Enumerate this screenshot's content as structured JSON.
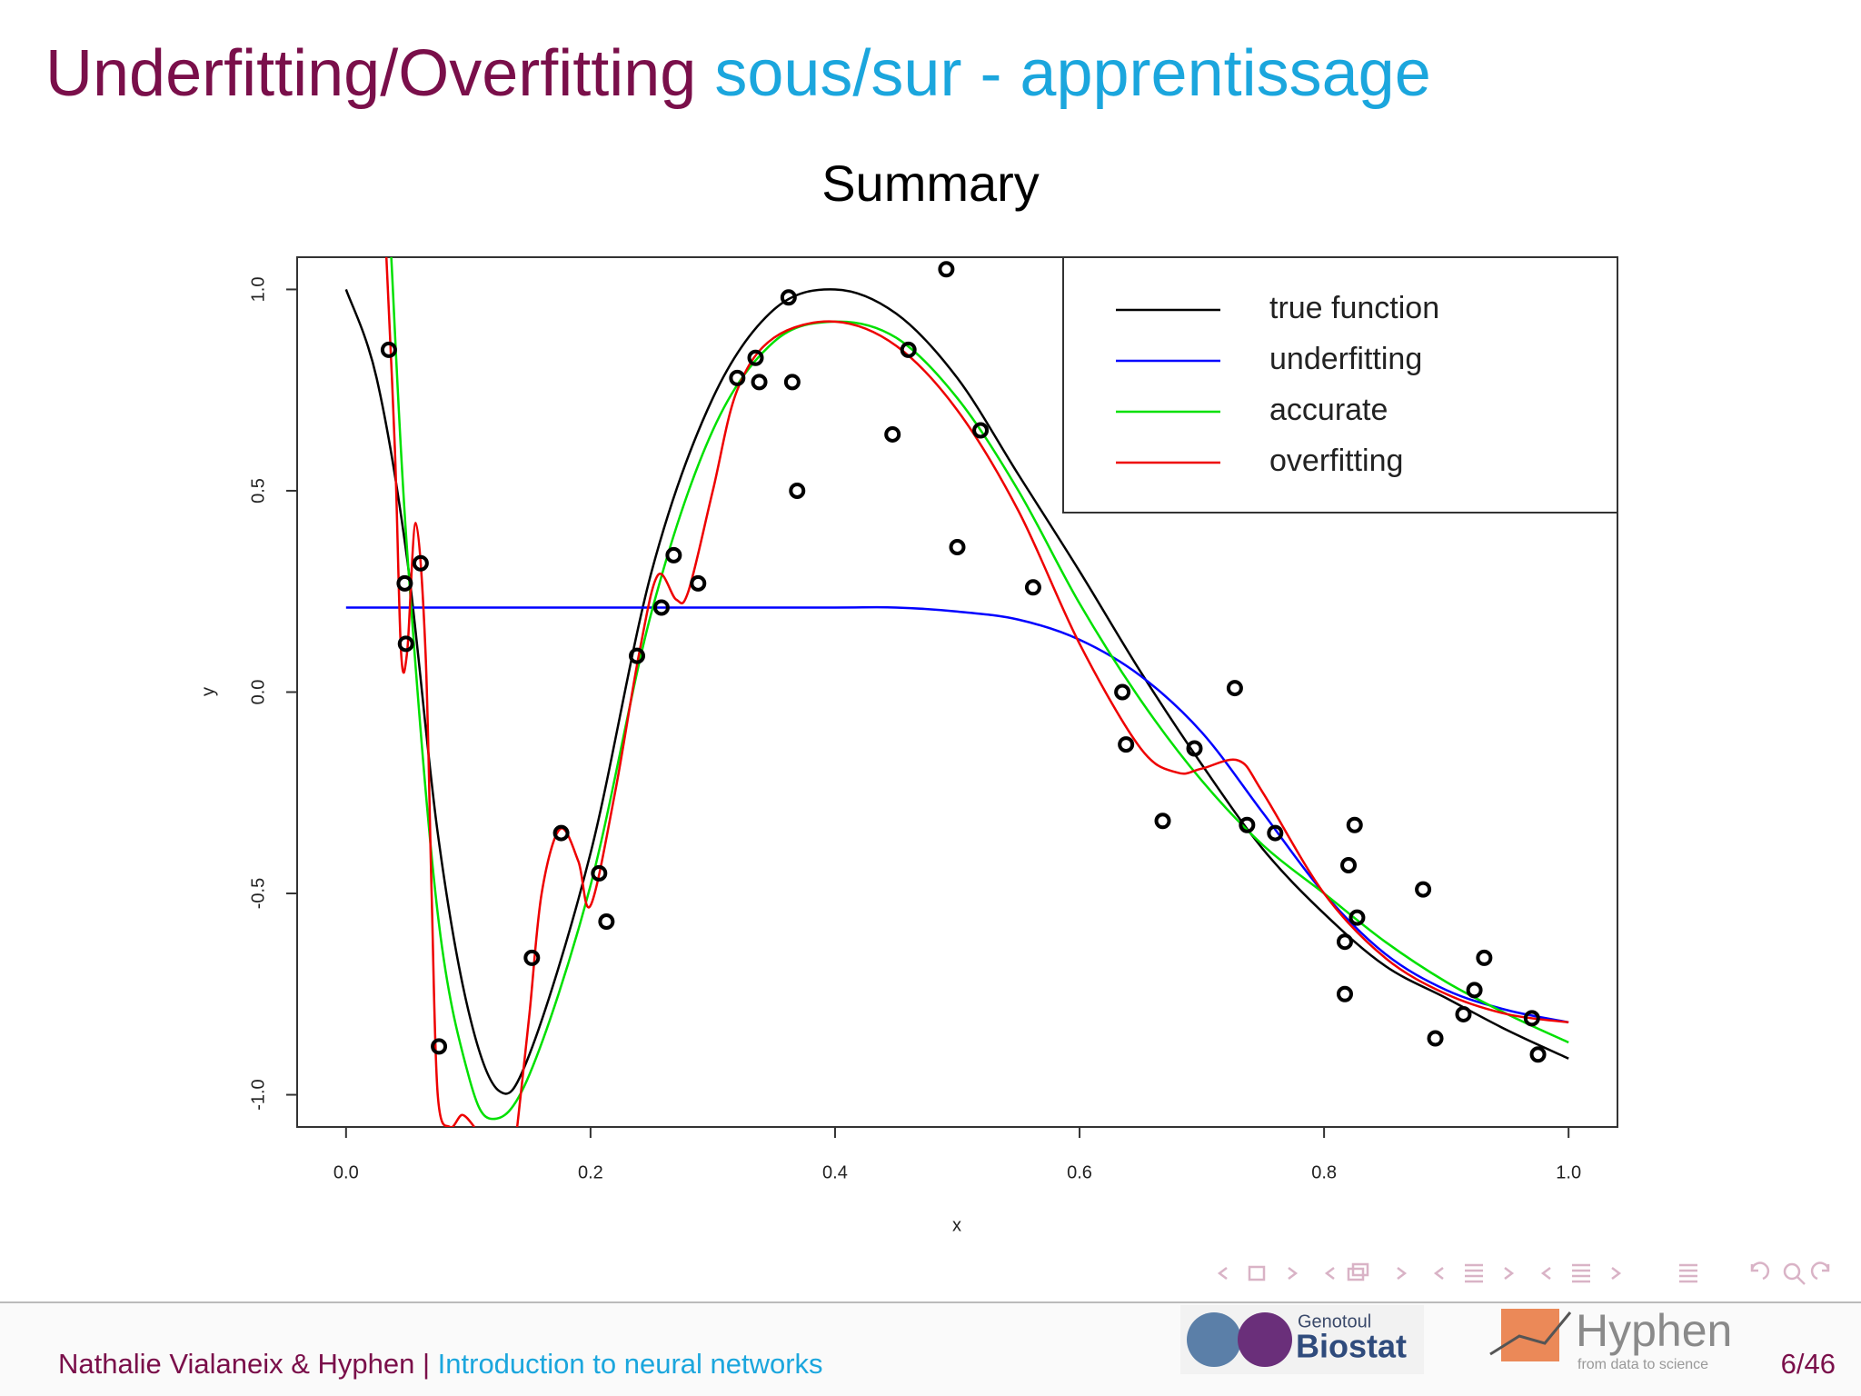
{
  "header": {
    "title_main": "Underfitting/Overfitting",
    "title_sub": "sous/sur - apprentissage"
  },
  "footer": {
    "authors": "Nathalie Vialaneix & Hyphen",
    "separator": "|",
    "talk": "Introduction to neural networks",
    "page": "6/46",
    "logo1_top": "Genotoul",
    "logo1_main": "Biostat",
    "logo2_main": "Hyphen",
    "logo2_sub": "from data to science"
  },
  "chart_data": {
    "type": "scatter",
    "title": "Summary",
    "x_label": "x",
    "y_label": "y",
    "x": [
      0.035,
      0.048,
      0.049,
      0.061,
      0.076,
      0.152,
      0.176,
      0.207,
      0.213,
      0.238,
      0.258,
      0.268,
      0.288,
      0.32,
      0.335,
      0.338,
      0.362,
      0.365,
      0.369,
      0.447,
      0.46,
      0.491,
      0.5,
      0.519,
      0.562,
      0.635,
      0.638,
      0.668,
      0.694,
      0.727,
      0.737,
      0.76,
      0.817,
      0.817,
      0.82,
      0.825,
      0.827,
      0.881,
      0.891,
      0.914,
      0.923,
      0.931,
      0.97,
      0.975
    ],
    "y": [
      0.85,
      0.27,
      0.12,
      0.32,
      -0.88,
      -0.66,
      -0.35,
      -0.45,
      -0.57,
      0.09,
      0.21,
      0.34,
      0.27,
      0.78,
      0.83,
      0.77,
      0.98,
      0.77,
      0.5,
      0.64,
      0.85,
      1.05,
      0.36,
      0.65,
      0.26,
      0.0,
      -0.13,
      -0.32,
      -0.14,
      0.01,
      -0.33,
      -0.35,
      -0.62,
      -0.75,
      -0.43,
      -0.33,
      -0.56,
      -0.49,
      -0.86,
      -0.8,
      -0.74,
      -0.66,
      -0.81,
      -0.9
    ],
    "point_color": "#000000",
    "series": [
      {
        "name": "true function",
        "color": "#000000",
        "x": [
          0,
          0.025,
          0.05,
          0.075,
          0.1,
          0.125,
          0.15,
          0.2,
          0.25,
          0.3,
          0.35,
          0.4,
          0.45,
          0.5,
          0.55,
          0.6,
          0.65,
          0.7,
          0.75,
          0.8,
          0.85,
          0.9,
          0.95,
          1.0
        ],
        "values": [
          1.0,
          0.78,
          0.33,
          -0.35,
          -0.79,
          -0.99,
          -0.9,
          -0.4,
          0.3,
          0.73,
          0.95,
          1.0,
          0.94,
          0.78,
          0.54,
          0.3,
          0.05,
          -0.18,
          -0.39,
          -0.55,
          -0.68,
          -0.76,
          -0.84,
          -0.91
        ]
      },
      {
        "name": "underfitting",
        "color": "#0000ff",
        "x": [
          0,
          0.1,
          0.2,
          0.3,
          0.4,
          0.45,
          0.5,
          0.55,
          0.6,
          0.65,
          0.7,
          0.75,
          0.8,
          0.85,
          0.9,
          0.95,
          1.0
        ],
        "values": [
          0.21,
          0.21,
          0.21,
          0.21,
          0.21,
          0.21,
          0.2,
          0.18,
          0.13,
          0.04,
          -0.1,
          -0.3,
          -0.5,
          -0.65,
          -0.74,
          -0.79,
          -0.82
        ]
      },
      {
        "name": "accurate",
        "color": "#00e000",
        "x": [
          0.037,
          0.05,
          0.075,
          0.1,
          0.12,
          0.15,
          0.2,
          0.25,
          0.3,
          0.35,
          0.4,
          0.45,
          0.5,
          0.55,
          0.6,
          0.65,
          0.7,
          0.75,
          0.8,
          0.85,
          0.9,
          0.95,
          1.0
        ],
        "values": [
          1.08,
          0.35,
          -0.55,
          -0.95,
          -1.06,
          -0.95,
          -0.48,
          0.2,
          0.65,
          0.87,
          0.92,
          0.88,
          0.73,
          0.5,
          0.22,
          -0.02,
          -0.22,
          -0.38,
          -0.5,
          -0.62,
          -0.72,
          -0.8,
          -0.87
        ]
      },
      {
        "name": "overfitting",
        "color": "#ee0000",
        "x": [
          0.033,
          0.04,
          0.045,
          0.05,
          0.057,
          0.065,
          0.07,
          0.075,
          0.085,
          0.095,
          0.105,
          0.12,
          0.14,
          0.15,
          0.16,
          0.175,
          0.19,
          0.2,
          0.22,
          0.24,
          0.255,
          0.27,
          0.28,
          0.3,
          0.32,
          0.35,
          0.4,
          0.45,
          0.5,
          0.55,
          0.6,
          0.65,
          0.68,
          0.7,
          0.73,
          0.75,
          0.8,
          0.85,
          0.9,
          0.95,
          1.0
        ],
        "values": [
          1.08,
          0.6,
          0.1,
          0.1,
          0.42,
          0.1,
          -0.5,
          -1.0,
          -1.08,
          -1.05,
          -1.08,
          null,
          -1.08,
          -0.8,
          -0.5,
          -0.34,
          -0.42,
          -0.53,
          -0.25,
          0.1,
          0.29,
          0.23,
          0.25,
          0.5,
          0.75,
          0.88,
          0.92,
          0.86,
          0.7,
          0.45,
          0.12,
          -0.14,
          -0.2,
          -0.19,
          -0.17,
          -0.25,
          -0.5,
          -0.66,
          -0.75,
          -0.8,
          -0.82
        ]
      }
    ],
    "xlim": [
      -0.04,
      1.04
    ],
    "ylim": [
      -1.08,
      1.08
    ],
    "xticks": [
      {
        "value": 0,
        "label": "0.0"
      },
      0.2,
      0.4,
      0.6,
      0.8,
      {
        "value": 1,
        "label": "1.0"
      }
    ],
    "yticks": [
      {
        "value": -1,
        "label": "-1.0"
      },
      -0.5,
      {
        "value": 0,
        "label": "0.0"
      },
      0.5,
      {
        "value": 1,
        "label": "1.0"
      }
    ],
    "legend": "top-right",
    "grid": false
  }
}
